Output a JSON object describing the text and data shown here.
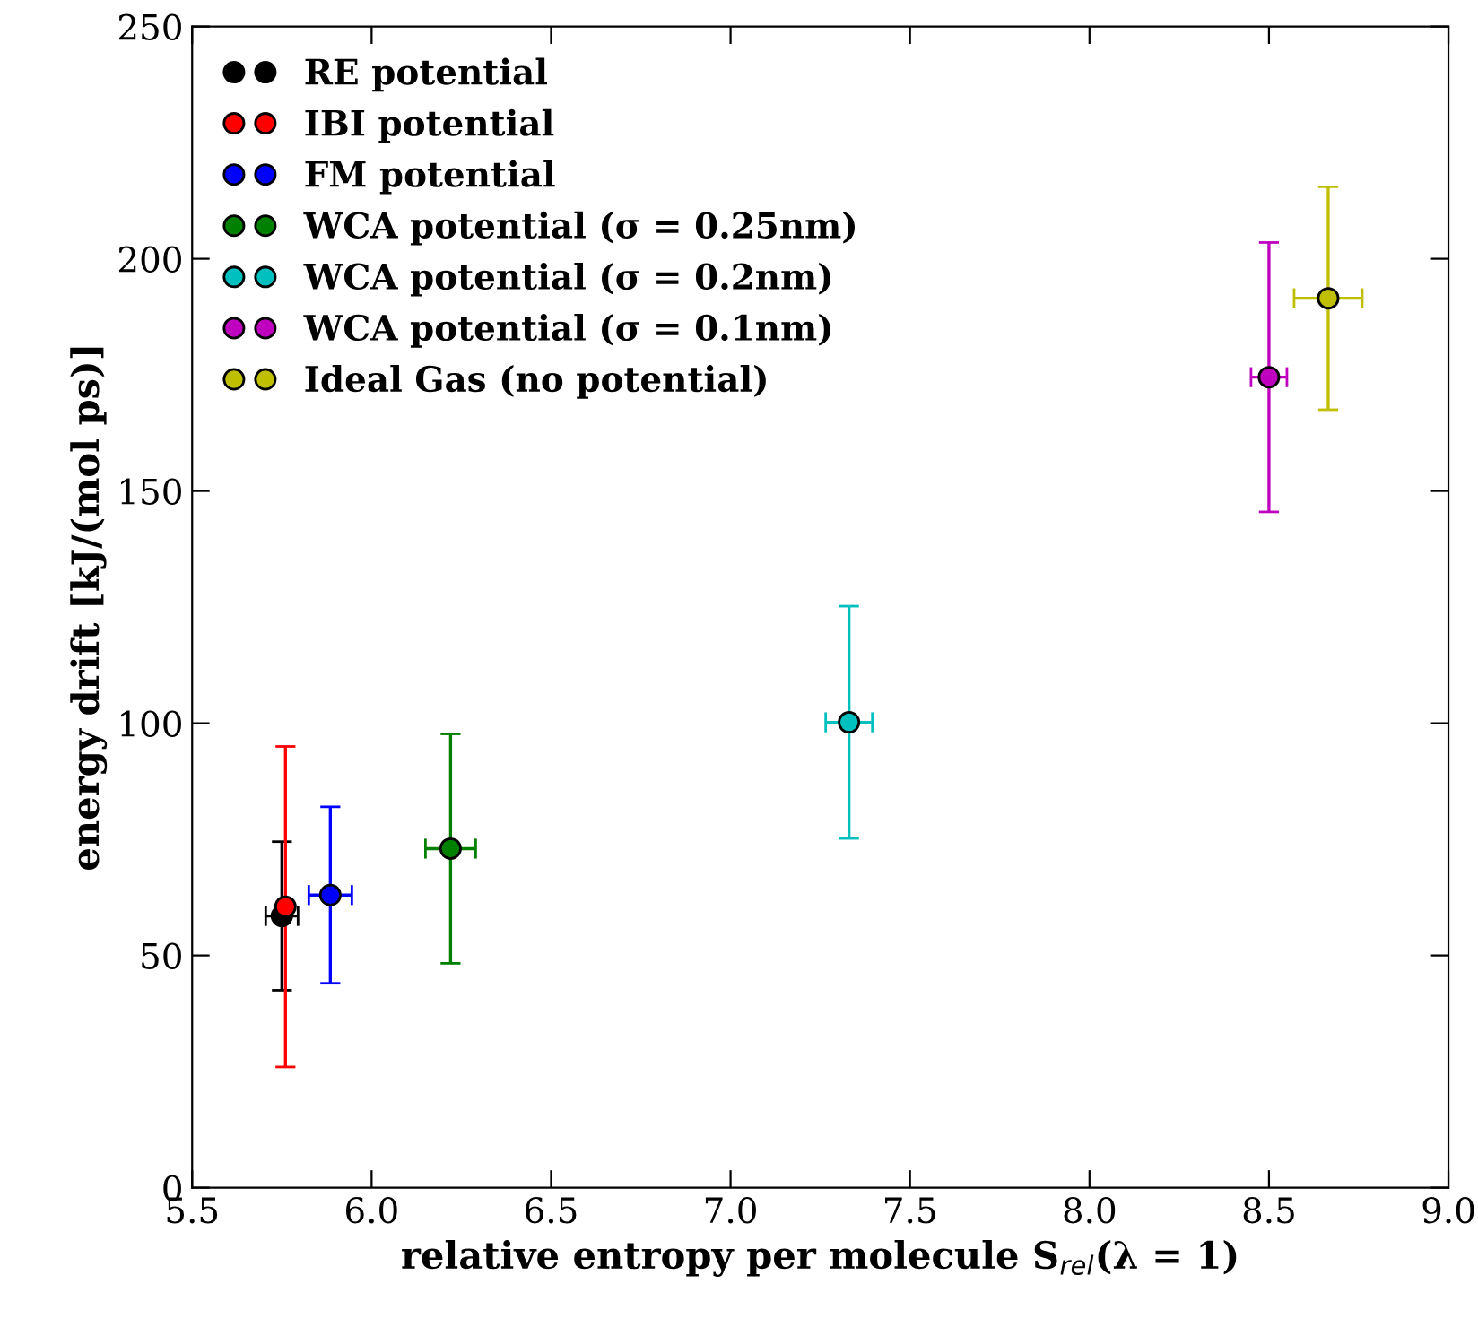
{
  "chart_data": {
    "type": "scatter",
    "xlabel": "relative entropy per molecule S$_{rel}$(λ = 1)",
    "ylabel": "energy drift [kJ/(mol ps)]",
    "xlim": [
      5.5,
      9.0
    ],
    "xticks": [
      {
        "value": 5.5,
        "label": "5.5"
      },
      {
        "value": 6.0,
        "label": "6.0"
      },
      {
        "value": 6.5,
        "label": "6.5"
      },
      {
        "value": 7.0,
        "label": "7.0"
      },
      {
        "value": 7.5,
        "label": "7.5"
      },
      {
        "value": 8.0,
        "label": "8.0"
      },
      {
        "value": 8.5,
        "label": "8.5"
      },
      {
        "value": 9.0,
        "label": "9.0"
      }
    ],
    "ylim": [
      0,
      250
    ],
    "yticks": [
      0,
      50,
      100,
      150,
      200,
      250
    ],
    "marker": "circle",
    "grid": false,
    "legend": "top left",
    "series": [
      {
        "name": "RE potential",
        "color": "#000000",
        "x": [
          5.75
        ],
        "values": [
          58.5
        ],
        "errors": [
          16
        ],
        "xerrors": [
          0.045
        ]
      },
      {
        "name": "IBI potential",
        "color": "#ff0000",
        "x": [
          5.76
        ],
        "values": [
          60.5
        ],
        "errors": [
          34.5
        ],
        "xerrors": [
          null
        ]
      },
      {
        "name": "FM potential",
        "color": "#0000ff",
        "x": [
          5.885
        ],
        "values": [
          63
        ],
        "errors": [
          19
        ],
        "xerrors": [
          0.06
        ]
      },
      {
        "name": "WCA potential (σ = 0.25nm)",
        "color": "#008000",
        "x": [
          6.22
        ],
        "values": [
          73
        ],
        "errors": [
          24.7
        ],
        "xerrors": [
          0.07
        ]
      },
      {
        "name": "WCA potential (σ = 0.2nm)",
        "color": "#00bfbf",
        "x": [
          7.33
        ],
        "values": [
          100.2
        ],
        "errors": [
          25
        ],
        "xerrors": [
          0.065
        ]
      },
      {
        "name": "WCA potential (σ = 0.1nm)",
        "color": "#bf00bf",
        "x": [
          8.5
        ],
        "values": [
          174.5
        ],
        "errors": [
          29
        ],
        "xerrors": [
          0.05
        ]
      },
      {
        "name": "Ideal Gas (no potential)",
        "color": "#bfbf00",
        "x": [
          8.665
        ],
        "values": [
          191.5
        ],
        "errors": [
          24
        ],
        "xerrors": [
          0.095
        ]
      }
    ]
  }
}
